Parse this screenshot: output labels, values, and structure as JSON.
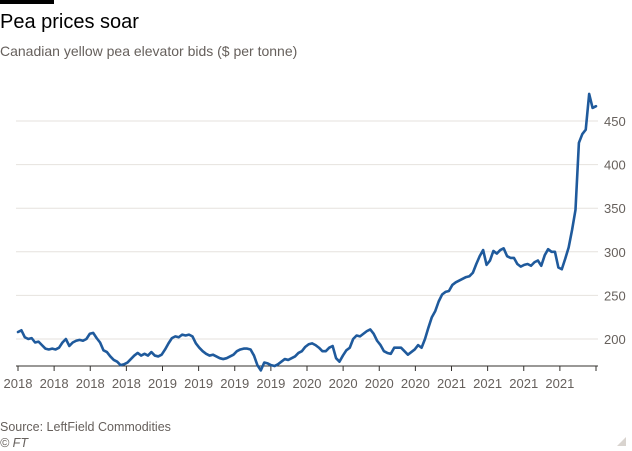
{
  "title": "Pea prices soar",
  "subtitle": "Canadian yellow pea elevator bids ($ per tonne)",
  "source": "Source: LeftField Commodities",
  "credit": "© FT",
  "colors": {
    "line": "#1f5a9c",
    "grid": "#e6e2de",
    "axis": "#33302e",
    "text": "#66605c",
    "title": "#000000"
  },
  "chart_data": {
    "type": "line",
    "title": "Pea prices soar",
    "subtitle": "Canadian yellow pea elevator bids ($ per tonne)",
    "xlabel": "",
    "ylabel": "",
    "ylim": [
      160,
      485
    ],
    "y_ticks": [
      200,
      250,
      300,
      350,
      400,
      450
    ],
    "y_axis_position": "right",
    "grid": "horizontal",
    "legend": "none",
    "x_tick_labels": [
      "2018",
      "2018",
      "2018",
      "2018",
      "2019",
      "2019",
      "2019",
      "2019",
      "2020",
      "2020",
      "2020",
      "2020",
      "2021",
      "2021",
      "2021",
      "2021"
    ],
    "series": [
      {
        "values": [
          208,
          210,
          202,
          200,
          201,
          196,
          197,
          193,
          189,
          188,
          189,
          188,
          190,
          196,
          200,
          192,
          196,
          198,
          199,
          198,
          200,
          206,
          207,
          201,
          196,
          187,
          185,
          180,
          176,
          174,
          170,
          171,
          173,
          177,
          181,
          184,
          181,
          183,
          181,
          185,
          181,
          180,
          182,
          188,
          195,
          201,
          203,
          202,
          205,
          204,
          205,
          203,
          195,
          190,
          186,
          183,
          181,
          182,
          180,
          178,
          177,
          178,
          180,
          182,
          186,
          188,
          189,
          189,
          188,
          181,
          170,
          164,
          173,
          172,
          170,
          169,
          171,
          174,
          177,
          176,
          178,
          180,
          184,
          186,
          191,
          194,
          195,
          193,
          190,
          186,
          186,
          190,
          192,
          178,
          174,
          181,
          187,
          190,
          200,
          204,
          203,
          206,
          209,
          211,
          206,
          198,
          193,
          186,
          184,
          183,
          190,
          190,
          190,
          186,
          182,
          185,
          188,
          193,
          190,
          200,
          213,
          225,
          232,
          243,
          251,
          254,
          255,
          262,
          265,
          267,
          269,
          271,
          272,
          276,
          286,
          295,
          302,
          285,
          290,
          301,
          298,
          302,
          304,
          295,
          293,
          293,
          286,
          283,
          285,
          286,
          284,
          288,
          290,
          284,
          296,
          303,
          300,
          300,
          282,
          280,
          292,
          305,
          325,
          348,
          425,
          435,
          440,
          481,
          465,
          467
        ]
      }
    ]
  }
}
